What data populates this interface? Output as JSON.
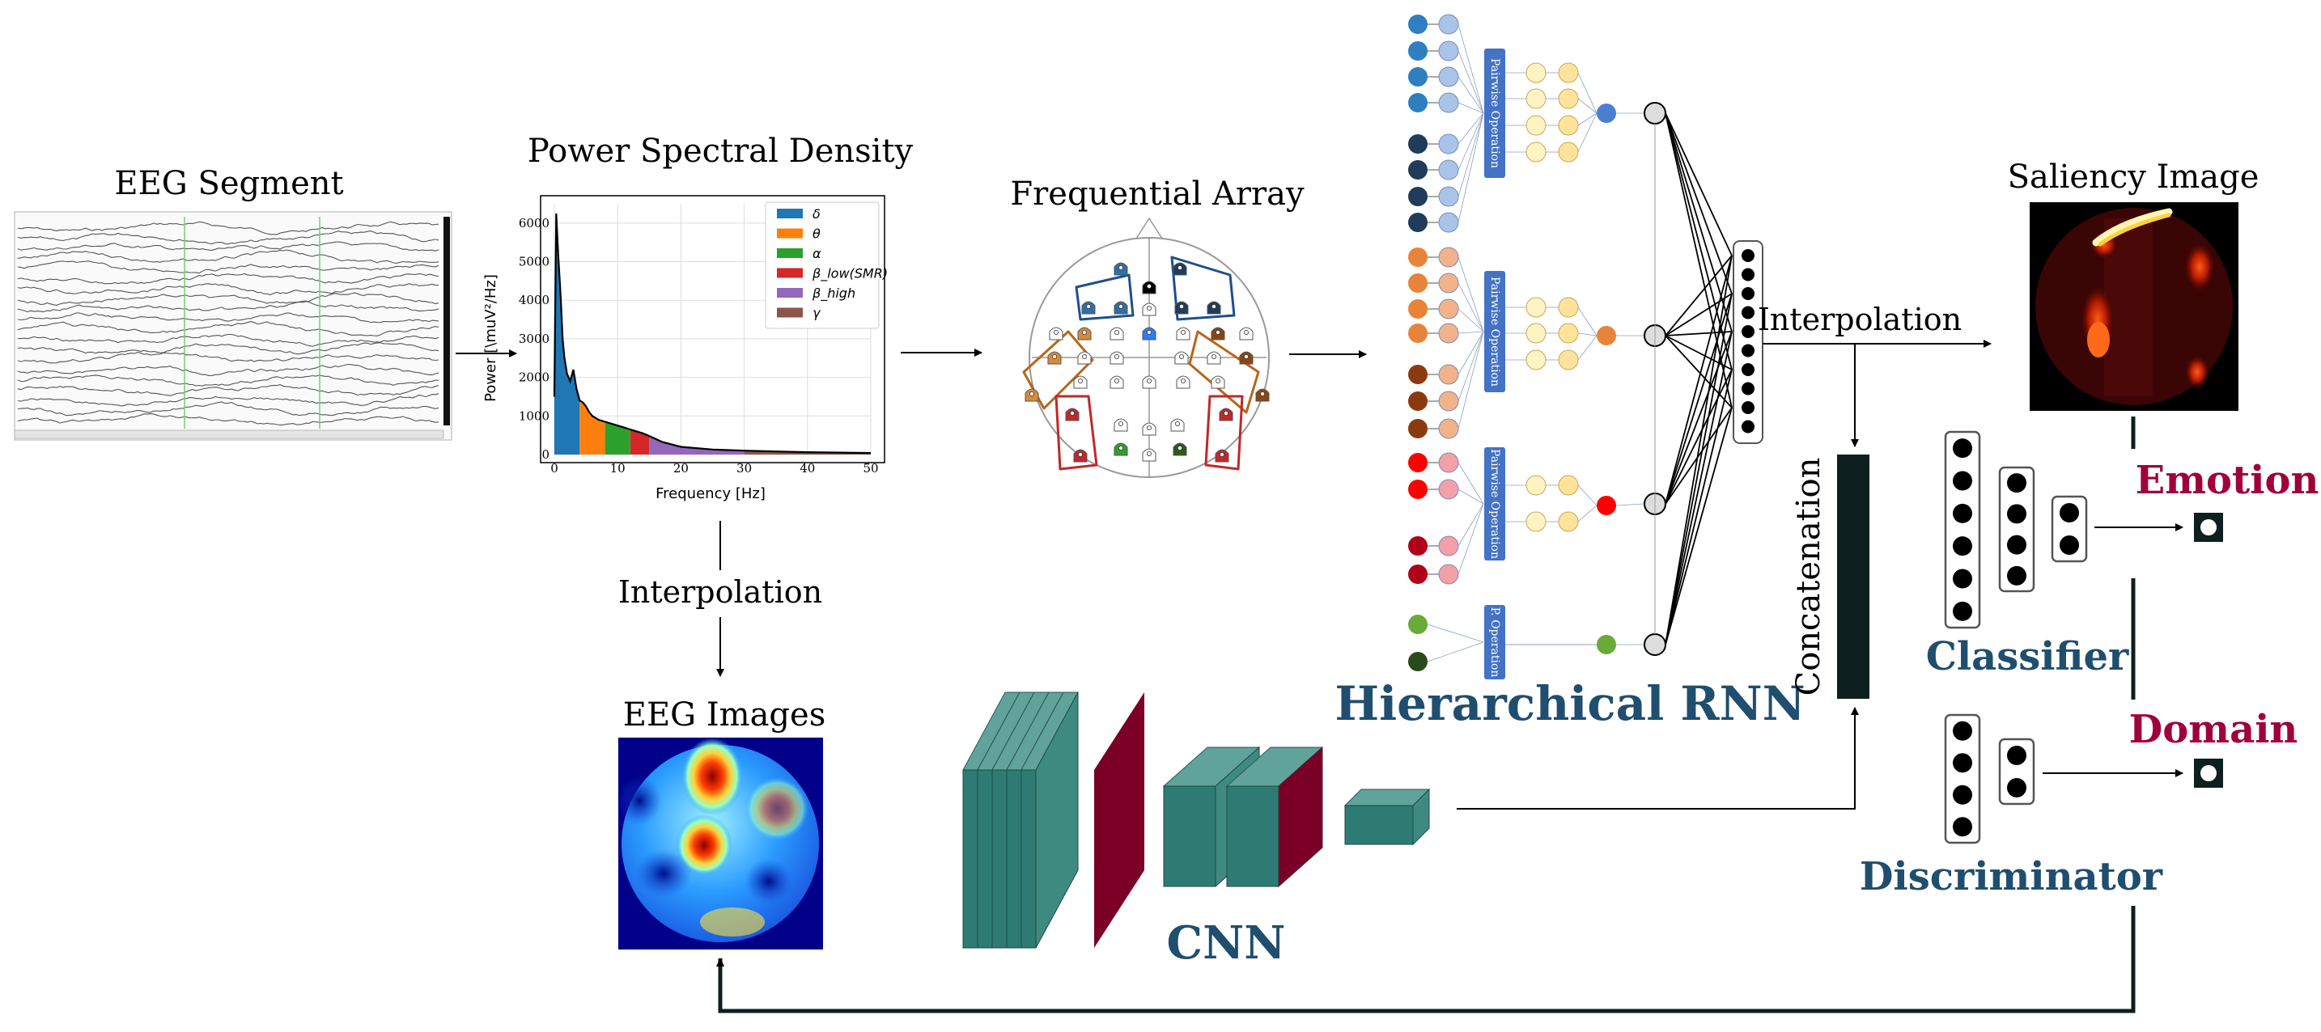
{
  "eeg_segment": {
    "title": "EEG Segment"
  },
  "psd": {
    "title": "Power Spectral Density",
    "xlabel": "Frequency [Hz]",
    "ylabel": "Power [\\muV²/Hz]",
    "legend": [
      "δ",
      "θ",
      "α",
      "β_low(SMR)",
      "β_high",
      "γ"
    ],
    "band_colors": [
      "#1f77b4",
      "#ff7f0e",
      "#2ca02c",
      "#d62728",
      "#9467bd",
      "#8c564b"
    ]
  },
  "chart_data": {
    "type": "area",
    "title": "Power Spectral Density",
    "xlabel": "Frequency [Hz]",
    "ylabel": "Power [\\muV²/Hz]",
    "xlim": [
      0,
      50
    ],
    "ylim": [
      0,
      6500
    ],
    "xticks": [
      0,
      10,
      20,
      30,
      40,
      50
    ],
    "yticks": [
      0,
      1000,
      2000,
      3000,
      4000,
      5000,
      6000
    ],
    "grid": true,
    "legend_position": "top-right",
    "bands": [
      {
        "name": "δ",
        "range": [
          0,
          4
        ],
        "color": "#1f77b4"
      },
      {
        "name": "θ",
        "range": [
          4,
          8
        ],
        "color": "#ff7f0e"
      },
      {
        "name": "α",
        "range": [
          8,
          12
        ],
        "color": "#2ca02c"
      },
      {
        "name": "β_low(SMR)",
        "range": [
          12,
          15
        ],
        "color": "#d62728"
      },
      {
        "name": "β_high",
        "range": [
          15,
          30
        ],
        "color": "#9467bd"
      },
      {
        "name": "γ",
        "range": [
          30,
          50
        ],
        "color": "#8c564b"
      }
    ],
    "x": [
      0,
      0.3,
      0.6,
      1.0,
      1.3,
      1.6,
      2.0,
      2.5,
      3.0,
      3.5,
      4.0,
      4.5,
      5.0,
      5.5,
      6.0,
      7.0,
      8.0,
      9.0,
      10.0,
      11.0,
      12.0,
      13.0,
      14.0,
      15.0,
      17.0,
      20.0,
      25.0,
      30.0,
      35.0,
      40.0,
      45.0,
      50.0
    ],
    "y": [
      1500,
      6250,
      5200,
      4100,
      3000,
      2500,
      2100,
      1900,
      2200,
      1700,
      1400,
      1350,
      1250,
      1100,
      1000,
      900,
      850,
      800,
      750,
      700,
      650,
      600,
      550,
      480,
      330,
      200,
      130,
      100,
      80,
      60,
      50,
      40
    ]
  },
  "interpolation_label": "Interpolation",
  "eeg_images": {
    "title": "EEG Images"
  },
  "frequential_array": {
    "title": "Frequential Array"
  },
  "rnn": {
    "title": "Hierarchical RNN",
    "op_labels": [
      "Pairwise Operation",
      "Pairwise Operation",
      "Pairwise Operation",
      "P. Operation"
    ]
  },
  "interpolation_label_2": "Interpolation",
  "saliency": {
    "title": "Saliency Image"
  },
  "concatenation_label": "Concatenation",
  "cnn_label": "CNN",
  "classifier_label": "Classifier",
  "discriminator_label": "Discriminator",
  "emotion_label": "Emotion",
  "domain_label": "Domain",
  "colors": {
    "teal": "#2e7b73",
    "maroon": "#7a0026",
    "navy": "#1f4e6e",
    "crimson": "#a0003a",
    "dark": "#0d1f1f"
  }
}
